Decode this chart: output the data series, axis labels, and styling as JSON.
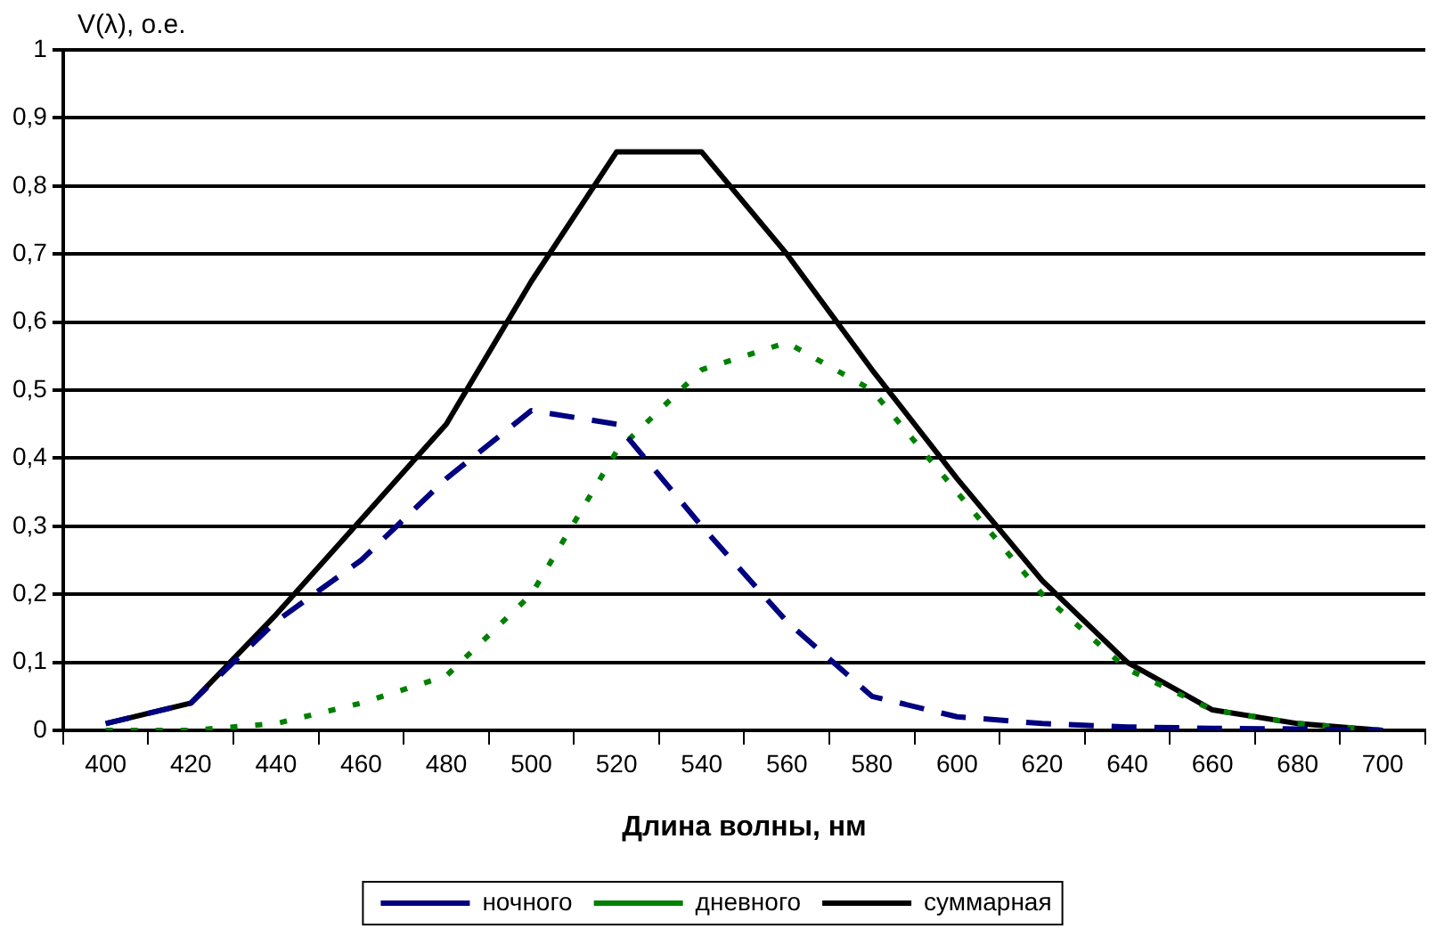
{
  "chart_data": {
    "type": "line",
    "ylabel": "V(λ), о.е.",
    "xlabel": "Длина волны, нм",
    "categories": [
      "400",
      "420",
      "440",
      "460",
      "480",
      "500",
      "520",
      "540",
      "560",
      "580",
      "600",
      "620",
      "640",
      "660",
      "680",
      "700"
    ],
    "series": [
      {
        "name": "ночного",
        "color": "#000080",
        "line_style": "dashed",
        "values": [
          0.01,
          0.04,
          0.16,
          0.25,
          0.37,
          0.47,
          0.45,
          0.3,
          0.16,
          0.05,
          0.02,
          0.01,
          0.005,
          0.003,
          0.002,
          0
        ]
      },
      {
        "name": "дневного",
        "color": "#008000",
        "line_style": "dotted",
        "values": [
          0,
          0,
          0.01,
          0.04,
          0.08,
          0.2,
          0.41,
          0.53,
          0.57,
          0.5,
          0.35,
          0.2,
          0.09,
          0.03,
          0.01,
          0
        ]
      },
      {
        "name": "суммарная",
        "color": "#000000",
        "line_style": "solid",
        "values": [
          0.01,
          0.04,
          0.17,
          0.31,
          0.45,
          0.66,
          0.85,
          0.85,
          0.7,
          0.53,
          0.37,
          0.22,
          0.1,
          0.03,
          0.01,
          0
        ]
      }
    ],
    "ylim": [
      0,
      1
    ],
    "yticks": [
      0,
      {
        "value": 0.1,
        "label": "0,1"
      },
      {
        "value": 0.2,
        "label": "0,2"
      },
      {
        "value": 0.3,
        "label": "0,3"
      },
      {
        "value": 0.4,
        "label": "0,4"
      },
      {
        "value": 0.5,
        "label": "0,5"
      },
      {
        "value": 0.6,
        "label": "0,6"
      },
      {
        "value": 0.7,
        "label": "0,7"
      },
      {
        "value": 0.8,
        "label": "0,8"
      },
      {
        "value": 0.9,
        "label": "0,9"
      },
      1
    ],
    "grid": "y",
    "legend": "bottom",
    "marker": "none"
  }
}
